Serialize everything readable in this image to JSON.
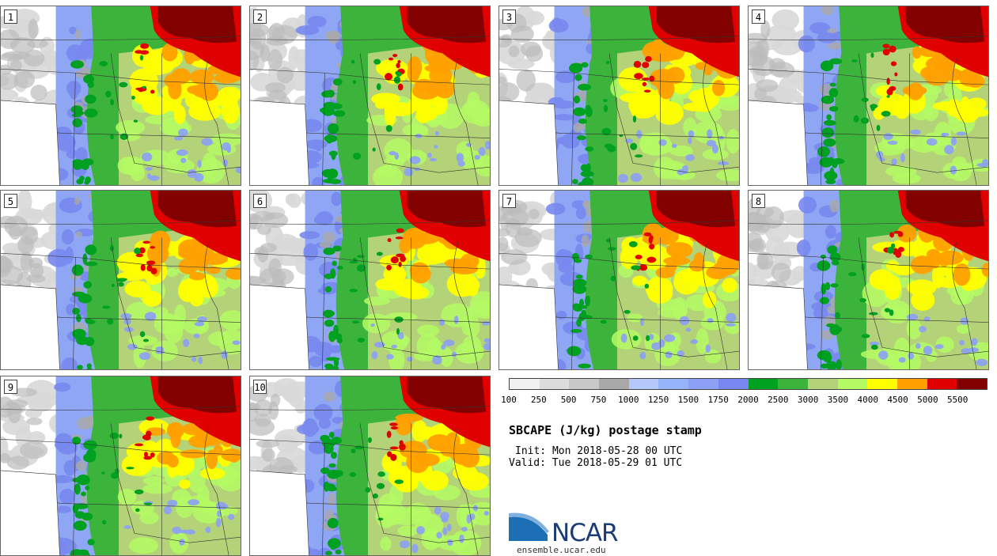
{
  "panels": [
    {
      "label": "1"
    },
    {
      "label": "2"
    },
    {
      "label": "3"
    },
    {
      "label": "4"
    },
    {
      "label": "5"
    },
    {
      "label": "6"
    },
    {
      "label": "7"
    },
    {
      "label": "8"
    },
    {
      "label": "9"
    },
    {
      "label": "10"
    }
  ],
  "colorbar": {
    "colors": [
      "#f0f0f0",
      "#dcdcdc",
      "#c8c8c8",
      "#a9a9a9",
      "#b4c8fa",
      "#96b4fa",
      "#8ca0f5",
      "#7888f0",
      "#00a020",
      "#3cb43c",
      "#b4d278",
      "#b4fa64",
      "#ffff00",
      "#ffa000",
      "#e10000",
      "#820000"
    ],
    "tick_labels": [
      "100",
      "250",
      "500",
      "750",
      "1000",
      "1250",
      "1500",
      "1750",
      "2000",
      "2500",
      "3000",
      "3500",
      "4000",
      "4500",
      "5000",
      "5500"
    ]
  },
  "title": "SBCAPE (J/kg) postage stamp",
  "init": "Init: Mon 2018-05-28 00 UTC",
  "valid": "Valid: Tue 2018-05-29 01 UTC",
  "logo": {
    "word": "NCAR",
    "site": "ensemble.ucar.edu",
    "brand_color": "#1c3d74"
  }
}
